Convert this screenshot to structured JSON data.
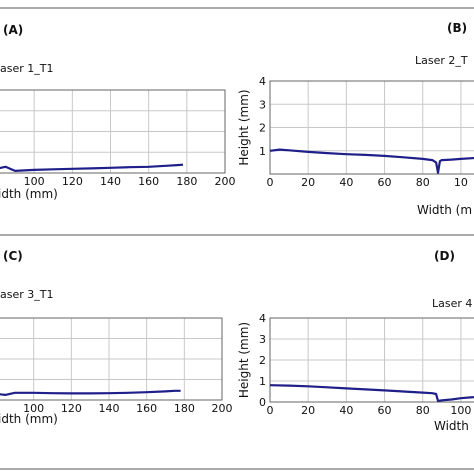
{
  "panels": [
    {
      "letter": "(A)",
      "title": "aser 1_T1",
      "xlabel": "idth (mm)",
      "ylabel": "",
      "x_ticks": [
        "100",
        "120",
        "140",
        "160",
        "180",
        "200"
      ],
      "y_ticks": []
    },
    {
      "letter": "(B)",
      "title": "Laser 2_T",
      "xlabel": "Width (m",
      "ylabel": "Height (mm)",
      "x_ticks": [
        "0",
        "20",
        "40",
        "60",
        "80",
        "10"
      ],
      "y_ticks": [
        "1",
        "2",
        "3",
        "4"
      ]
    },
    {
      "letter": "(C)",
      "title": "aser 3_T1",
      "xlabel": "idth (mm)",
      "ylabel": "",
      "x_ticks": [
        "100",
        "120",
        "140",
        "160",
        "180",
        "200"
      ],
      "y_ticks": []
    },
    {
      "letter": "(D)",
      "title": "Laser 4",
      "xlabel": "Width",
      "ylabel": "Height (mm)",
      "x_ticks": [
        "0",
        "20",
        "40",
        "60",
        "80",
        "100"
      ],
      "y_ticks": [
        "0",
        "1",
        "2",
        "3",
        "4"
      ]
    }
  ],
  "chart_data": [
    {
      "type": "line",
      "title": "aser 1_T1",
      "xlabel": "idth (mm)",
      "ylabel": "",
      "xlim": [
        80,
        200
      ],
      "ylim": [
        0,
        4
      ],
      "grid": true,
      "series_color": "#1f1f8a",
      "x": [
        80,
        85,
        90,
        100,
        110,
        120,
        130,
        140,
        150,
        160,
        170,
        175,
        178
      ],
      "y": [
        0.2,
        0.3,
        0.1,
        0.15,
        0.18,
        0.2,
        0.22,
        0.25,
        0.28,
        0.3,
        0.35,
        0.38,
        0.4
      ]
    },
    {
      "type": "line",
      "title": "Laser 2_T",
      "xlabel": "Width (m",
      "ylabel": "Height (mm)",
      "xlim": [
        0,
        110
      ],
      "ylim": [
        0,
        4
      ],
      "grid": true,
      "series_color": "#1f1f8a",
      "x": [
        0,
        5,
        10,
        20,
        30,
        40,
        50,
        60,
        70,
        80,
        85,
        87,
        88,
        89,
        90,
        95,
        100,
        110
      ],
      "y": [
        1.0,
        1.05,
        1.02,
        0.95,
        0.9,
        0.85,
        0.82,
        0.78,
        0.72,
        0.65,
        0.6,
        0.5,
        0.05,
        0.55,
        0.6,
        0.62,
        0.65,
        0.7
      ]
    },
    {
      "type": "line",
      "title": "aser 3_T1",
      "xlabel": "idth (mm)",
      "ylabel": "",
      "xlim": [
        80,
        200
      ],
      "ylim": [
        0,
        4
      ],
      "grid": true,
      "series_color": "#1f1f8a",
      "x": [
        80,
        85,
        90,
        100,
        110,
        120,
        130,
        140,
        150,
        160,
        170,
        175,
        178
      ],
      "y": [
        0.3,
        0.25,
        0.35,
        0.35,
        0.33,
        0.32,
        0.32,
        0.33,
        0.35,
        0.38,
        0.42,
        0.45,
        0.45
      ]
    },
    {
      "type": "line",
      "title": "Laser 4",
      "xlabel": "Width",
      "ylabel": "Height (mm)",
      "xlim": [
        0,
        110
      ],
      "ylim": [
        0,
        4
      ],
      "grid": true,
      "series_color": "#1f1f8a",
      "x": [
        0,
        10,
        20,
        30,
        40,
        50,
        60,
        70,
        80,
        85,
        87,
        88,
        90,
        95,
        100,
        105,
        110
      ],
      "y": [
        0.8,
        0.78,
        0.75,
        0.7,
        0.65,
        0.6,
        0.55,
        0.5,
        0.45,
        0.42,
        0.38,
        0.05,
        0.08,
        0.12,
        0.18,
        0.22,
        0.25
      ]
    }
  ]
}
